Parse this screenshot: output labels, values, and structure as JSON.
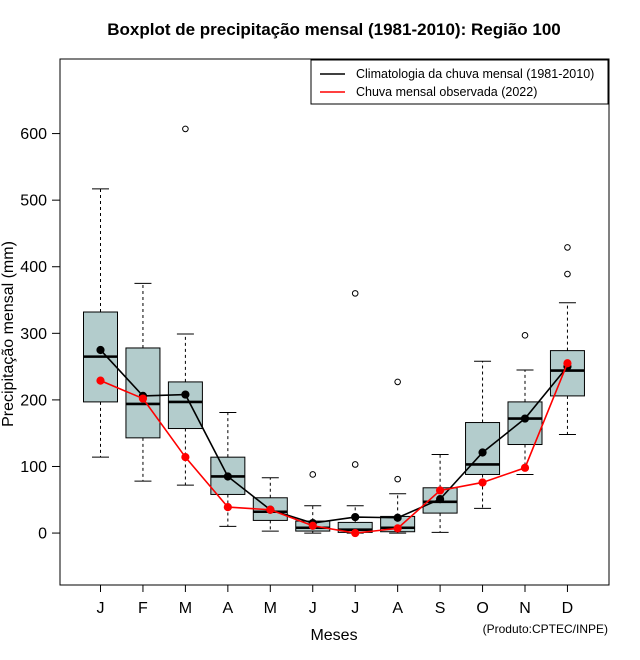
{
  "chart_data": {
    "type": "boxplot",
    "title": "Boxplot de precipitação mensal (1981-2010): Região 100",
    "xlabel": "Meses",
    "ylabel": "Precipitação mensal (mm)",
    "ylim": [
      -78,
      712
    ],
    "yticks": [
      0,
      100,
      200,
      300,
      400,
      500,
      600
    ],
    "categories": [
      "J",
      "F",
      "M",
      "A",
      "M",
      "J",
      "J",
      "A",
      "S",
      "O",
      "N",
      "D"
    ],
    "boxes": [
      {
        "whisker_low": 114,
        "q1": 197,
        "median": 265,
        "q3": 332,
        "whisker_high": 517,
        "outliers": []
      },
      {
        "whisker_low": 78,
        "q1": 143,
        "median": 194,
        "q3": 278,
        "whisker_high": 375,
        "outliers": []
      },
      {
        "whisker_low": 72,
        "q1": 157,
        "median": 197,
        "q3": 227,
        "whisker_high": 299,
        "outliers": [
          607
        ]
      },
      {
        "whisker_low": 10,
        "q1": 58,
        "median": 85,
        "q3": 114,
        "whisker_high": 181,
        "outliers": []
      },
      {
        "whisker_low": 3,
        "q1": 19,
        "median": 32,
        "q3": 53,
        "whisker_high": 83,
        "outliers": []
      },
      {
        "whisker_low": 0,
        "q1": 3,
        "median": 8,
        "q3": 18,
        "whisker_high": 41,
        "outliers": [
          88
        ]
      },
      {
        "whisker_low": 0,
        "q1": 1,
        "median": 5,
        "q3": 16,
        "whisker_high": 41,
        "outliers": [
          103,
          360
        ]
      },
      {
        "whisker_low": 0,
        "q1": 2,
        "median": 8,
        "q3": 25,
        "whisker_high": 59,
        "outliers": [
          81,
          227
        ]
      },
      {
        "whisker_low": 1,
        "q1": 30,
        "median": 47,
        "q3": 68,
        "whisker_high": 118,
        "outliers": []
      },
      {
        "whisker_low": 37,
        "q1": 88,
        "median": 103,
        "q3": 166,
        "whisker_high": 258,
        "outliers": []
      },
      {
        "whisker_low": 88,
        "q1": 133,
        "median": 172,
        "q3": 197,
        "whisker_high": 245,
        "outliers": [
          297
        ]
      },
      {
        "whisker_low": 148,
        "q1": 206,
        "median": 244,
        "q3": 274,
        "whisker_high": 346,
        "outliers": [
          389,
          429
        ]
      }
    ],
    "series": [
      {
        "name": "Climatologia da chuva mensal (1981-2010)",
        "color": "#000000",
        "values": [
          275,
          206,
          208,
          85,
          35,
          15,
          24,
          23,
          51,
          121,
          172,
          250
        ]
      },
      {
        "name": "Chuva mensal observada (2022)",
        "color": "#ff0000",
        "values": [
          229,
          202,
          114,
          39,
          35,
          11,
          0,
          7,
          64,
          76,
          98,
          255
        ]
      }
    ],
    "box_fill": "#b3cccc",
    "legend_position": "top-right",
    "credit": "(Produto:CPTEC/INPE)"
  }
}
